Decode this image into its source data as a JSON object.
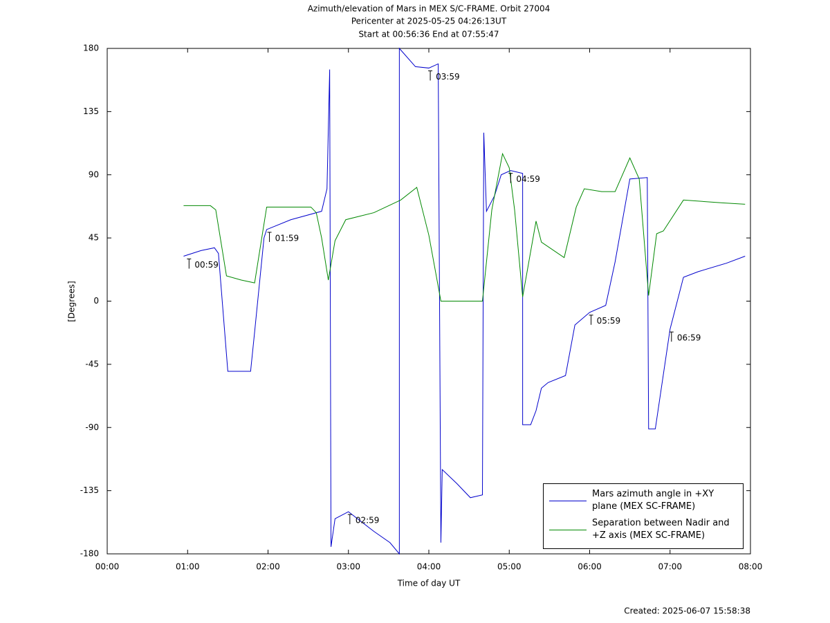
{
  "chart_data": {
    "type": "line",
    "title": [
      "Azimuth/elevation of Mars in MEX S/C-FRAME.  Orbit 27004",
      "Pericenter at 2025-05-25 04:26:13UT",
      "Start at 00:56:36 End at 07:55:47"
    ],
    "xlabel": "Time of day UT",
    "ylabel": "[Degrees]",
    "footer": "Created: 2025-06-07 15:58:38",
    "xlim": [
      "00:00",
      "08:00"
    ],
    "xticks": [
      "00:00",
      "01:00",
      "02:00",
      "03:00",
      "04:00",
      "05:00",
      "06:00",
      "07:00",
      "08:00"
    ],
    "ylim": [
      -180,
      180
    ],
    "yticks": [
      180,
      135,
      90,
      45,
      0,
      -45,
      -90,
      -135,
      -180
    ],
    "legend": "lower right",
    "series": [
      {
        "name": "Mars azimuth angle in +XY plane (MEX SC-FRAME)",
        "color": "#0000cc",
        "x": [
          "00:57",
          "01:10",
          "01:20",
          "01:23",
          "01:30",
          "01:40",
          "01:47",
          "01:50",
          "01:57",
          "01:59",
          "02:17",
          "02:40",
          "02:44",
          "02:46",
          "02:47",
          "02:50",
          "03:00",
          "03:19",
          "03:31",
          "03:38",
          "03:38",
          "03:50",
          "04:00",
          "04:07",
          "04:09",
          "04:10",
          "04:21",
          "04:31",
          "04:40",
          "04:41",
          "04:43",
          "04:49",
          "04:54",
          "05:01",
          "05:10",
          "05:10",
          "05:16",
          "05:20",
          "05:24",
          "05:29",
          "05:42",
          "05:49",
          "06:00",
          "06:12",
          "06:19",
          "06:30",
          "06:43",
          "06:44",
          "06:49",
          "07:00",
          "07:10",
          "07:21",
          "07:42",
          "07:56"
        ],
        "values": [
          32,
          36,
          38,
          34,
          -50,
          -50,
          -50,
          -22,
          45,
          51,
          58,
          64,
          80,
          165,
          -175,
          -155,
          -150,
          -164,
          -172,
          -180,
          180,
          167,
          166,
          169,
          -172,
          -120,
          -130,
          -140,
          -138,
          120,
          64,
          75,
          90,
          93,
          91,
          -88,
          -88,
          -78,
          -62,
          -58,
          -53,
          -17,
          -8,
          -3,
          28,
          87,
          88,
          -91,
          -91,
          -20,
          17,
          21,
          27,
          32
        ]
      },
      {
        "name": "Separation between Nadir and +Z axis (MEX SC-FRAME)",
        "color": "#008800",
        "x": [
          "00:57",
          "01:10",
          "01:17",
          "01:21",
          "01:29",
          "01:40",
          "01:50",
          "01:59",
          "02:17",
          "02:32",
          "02:36",
          "02:40",
          "02:45",
          "02:50",
          "02:58",
          "03:19",
          "03:39",
          "03:51",
          "04:00",
          "04:09",
          "04:27",
          "04:40",
          "04:47",
          "04:55",
          "05:00",
          "05:04",
          "05:10",
          "05:20",
          "05:24",
          "05:41",
          "05:50",
          "05:56",
          "06:09",
          "06:19",
          "06:30",
          "06:37",
          "06:44",
          "06:50",
          "06:55",
          "07:10",
          "07:39",
          "07:56"
        ],
        "values": [
          68,
          68,
          68,
          65,
          18,
          15,
          13,
          67,
          67,
          67,
          63,
          45,
          15,
          43,
          58,
          63,
          72,
          81,
          47,
          0,
          0,
          0,
          65,
          105,
          95,
          65,
          3,
          57,
          42,
          31,
          67,
          80,
          78,
          78,
          102,
          87,
          4,
          48,
          50,
          72,
          70,
          69
        ]
      }
    ],
    "annotations": [
      {
        "label": "00:59",
        "x": "00:59",
        "y": 32
      },
      {
        "label": "01:59",
        "x": "01:59",
        "y": 51
      },
      {
        "label": "02:59",
        "x": "02:59",
        "y": -150
      },
      {
        "label": "03:59",
        "x": "03:59",
        "y": 166
      },
      {
        "label": "04:59",
        "x": "04:59",
        "y": 93
      },
      {
        "label": "05:59",
        "x": "05:59",
        "y": -8
      },
      {
        "label": "06:59",
        "x": "06:59",
        "y": -20
      }
    ]
  }
}
